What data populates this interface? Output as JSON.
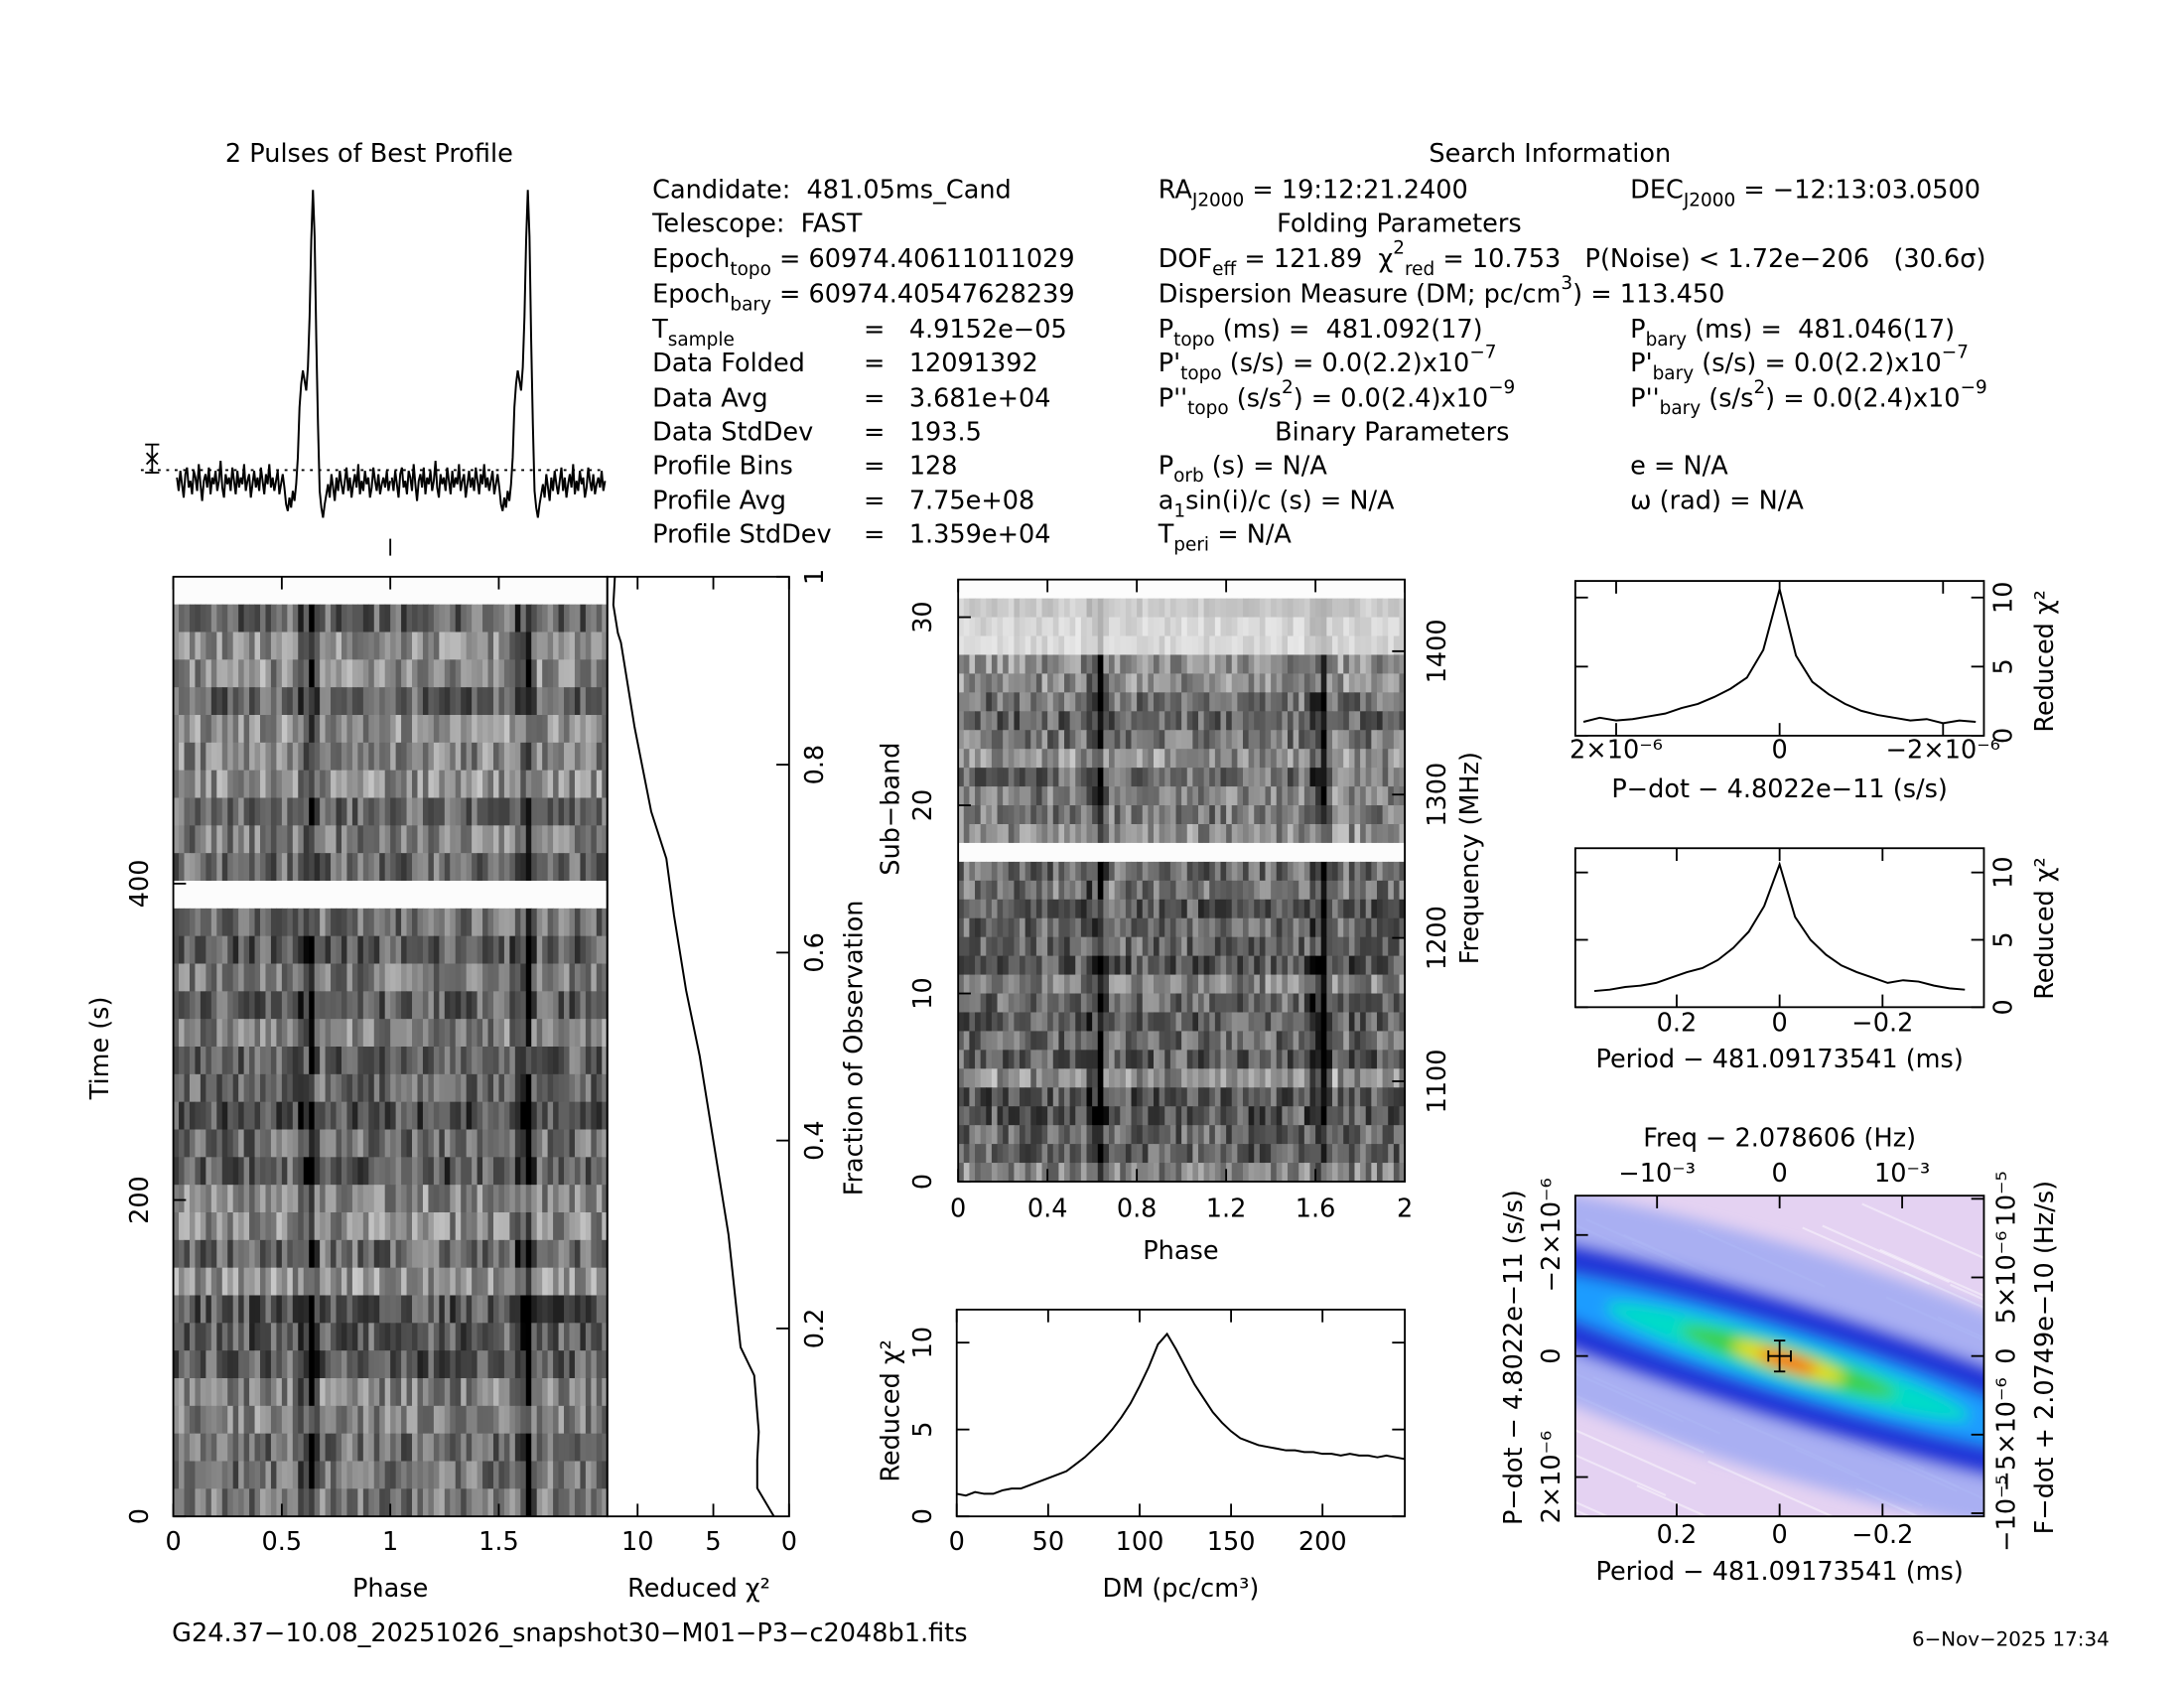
{
  "info": {
    "title": "Search Information",
    "items": [
      [
        {
          "t": "Candidate:  481.05ms_Cand"
        }
      ],
      [
        {
          "t": "Telescope:  FAST"
        }
      ],
      [
        {
          "t": "Epoch"
        },
        {
          "sub": "topo"
        },
        {
          "t": " = 60974.40611011029"
        }
      ],
      [
        {
          "t": "Epoch"
        },
        {
          "sub": "bary"
        },
        {
          "t": " = 60974.40547628239"
        }
      ],
      [
        {
          "t": "T"
        },
        {
          "sub": "sample"
        }
      ],
      [
        {
          "t": "=   4.9152e−05"
        }
      ],
      [
        {
          "t": "Data Folded"
        }
      ],
      [
        {
          "t": "=   12091392"
        }
      ],
      [
        {
          "t": "Data Avg"
        }
      ],
      [
        {
          "t": "=   3.681e+04"
        }
      ],
      [
        {
          "t": "Data StdDev"
        }
      ],
      [
        {
          "t": "=   193.5"
        }
      ],
      [
        {
          "t": "Profile Bins"
        }
      ],
      [
        {
          "t": "=   128"
        }
      ],
      [
        {
          "t": "Profile Avg"
        }
      ],
      [
        {
          "t": "=   7.75e+08"
        }
      ],
      [
        {
          "t": "Profile StdDev"
        }
      ],
      [
        {
          "t": "=   1.359e+04"
        }
      ],
      [
        {
          "t": "RA"
        },
        {
          "sub": "J2000"
        },
        {
          "t": " = 19:12:21.2400"
        }
      ],
      [
        {
          "t": "Folding Parameters"
        }
      ],
      [
        {
          "t": "DOF"
        },
        {
          "sub": "eff"
        },
        {
          "t": " = 121.89  χ"
        },
        {
          "sup": "2"
        },
        {
          "sub": "red"
        },
        {
          "t": " = 10.753   P(Noise) < 1.72e−206   (30.6σ)"
        }
      ],
      [
        {
          "t": "Dispersion Measure (DM; pc/cm"
        },
        {
          "sup": "3"
        },
        {
          "t": ") = 113.450"
        }
      ],
      [
        {
          "t": "P"
        },
        {
          "sub": "topo"
        },
        {
          "t": " (ms) =  481.092(17)"
        }
      ],
      [
        {
          "t": "P'"
        },
        {
          "sub": "topo"
        },
        {
          "t": " (s/s) = 0.0(2.2)x10"
        },
        {
          "sup": "−7"
        }
      ],
      [
        {
          "t": "P''"
        },
        {
          "sub": "topo"
        },
        {
          "t": " (s/s"
        },
        {
          "sup": "2"
        },
        {
          "t": ") = 0.0(2.4)x10"
        },
        {
          "sup": "−9"
        }
      ],
      [
        {
          "t": "Binary Parameters"
        }
      ],
      [
        {
          "t": "P"
        },
        {
          "sub": "orb"
        },
        {
          "t": " (s) = N/A"
        }
      ],
      [
        {
          "t": "a"
        },
        {
          "sub": "1"
        },
        {
          "t": "sin(i)/c (s) = N/A"
        }
      ],
      [
        {
          "t": "T"
        },
        {
          "sub": "peri"
        },
        {
          "t": " = N/A"
        }
      ],
      [
        {
          "t": "DEC"
        },
        {
          "sub": "J2000"
        },
        {
          "t": " = −12:13:03.0500"
        }
      ],
      [
        {
          "t": "P"
        },
        {
          "sub": "bary"
        },
        {
          "t": " (ms) =  481.046(17)"
        }
      ],
      [
        {
          "t": "P'"
        },
        {
          "sub": "bary"
        },
        {
          "t": " (s/s) = 0.0(2.2)x10"
        },
        {
          "sup": "−7"
        }
      ],
      [
        {
          "t": "P''"
        },
        {
          "sub": "bary"
        },
        {
          "t": " (s/s"
        },
        {
          "sup": "2"
        },
        {
          "t": ") = 0.0(2.4)x10"
        },
        {
          "sup": "−9"
        }
      ],
      [
        {
          "t": "e = N/A"
        }
      ],
      [
        {
          "t": "ω (rad) = N/A"
        }
      ]
    ]
  },
  "footer": {
    "file": "G24.37−10.08_20251026_snapshot30−M01−P3−c2048b1.fits",
    "date": "6−Nov−2025 17:34"
  },
  "chart_data": [
    {
      "type": "profile",
      "title": "2 Pulses of Best Profile",
      "color": "#000000",
      "values": [
        0.14,
        0.1,
        0.16,
        0.12,
        0.08,
        0.15,
        0.17,
        0.11,
        0.13,
        0.09,
        0.16,
        0.14,
        0.1,
        0.18,
        0.12,
        0.07,
        0.13,
        0.15,
        0.11,
        0.17,
        0.09,
        0.14,
        0.12,
        0.16,
        0.1,
        0.13,
        0.19,
        0.11,
        0.08,
        0.15,
        0.12,
        0.14,
        0.1,
        0.17,
        0.13,
        0.09,
        0.16,
        0.11,
        0.14,
        0.12,
        0.18,
        0.1,
        0.13,
        0.15,
        0.08,
        0.12,
        0.16,
        0.11,
        0.14,
        0.1,
        0.17,
        0.13,
        0.09,
        0.15,
        0.12,
        0.18,
        0.11,
        0.14,
        0.1,
        0.13,
        0.16,
        0.09,
        0.12,
        0.15,
        0.11,
        0.06,
        0.04,
        0.08,
        0.05,
        0.1,
        0.07,
        0.12,
        0.2,
        0.35,
        0.42,
        0.46,
        0.43,
        0.4,
        0.47,
        0.62,
        0.85,
        1.0,
        0.86,
        0.55,
        0.3,
        0.1,
        0.05,
        0.02,
        0.06,
        0.09,
        0.12,
        0.08,
        0.15,
        0.11,
        0.07,
        0.14,
        0.1,
        0.16,
        0.12,
        0.09,
        0.13,
        0.17,
        0.1,
        0.14,
        0.08,
        0.12,
        0.15,
        0.11,
        0.18,
        0.09,
        0.13,
        0.1,
        0.16,
        0.12,
        0.14,
        0.08,
        0.11,
        0.17,
        0.13,
        0.1,
        0.15,
        0.09,
        0.12,
        0.14,
        0.11,
        0.16,
        0.1,
        0.13
      ]
    },
    {
      "type": "greyscale",
      "xlabel": "Phase",
      "ylabel": "Time (s)",
      "xlim": [
        0,
        2
      ],
      "xticks": [
        0,
        0.5,
        1,
        1.5
      ],
      "ylim": [
        0,
        594
      ],
      "yticks": [
        0,
        200,
        400
      ]
    },
    {
      "type": "line",
      "xlabel": "Reduced χ²",
      "ylabel": "Fraction of Observation",
      "color": "#000000",
      "x": [
        1.0,
        2.1,
        2.1,
        2.0,
        2.3,
        3.2,
        4.0,
        4.3,
        5.2,
        5.9,
        6.8,
        7.6,
        8.1,
        9.1,
        10.2,
        11.1,
        11.3,
        11.6,
        11.5
      ],
      "values": [
        0,
        0.03,
        0.06,
        0.09,
        0.15,
        0.18,
        0.3,
        0.33,
        0.42,
        0.49,
        0.56,
        0.64,
        0.7,
        0.75,
        0.84,
        0.93,
        0.94,
        0.97,
        1.0
      ],
      "xlim": [
        12,
        0
      ],
      "xticks": [
        10,
        5,
        0
      ],
      "ylim": [
        0,
        1
      ],
      "yticks": [
        0.2,
        0.4,
        0.6,
        0.8,
        1
      ]
    },
    {
      "type": "greyscale",
      "xlabel": "Phase",
      "ylabel": "Sub−band",
      "y2label": "Frequency (MHz)",
      "xlim": [
        0,
        2
      ],
      "xticks": [
        0,
        0.4,
        0.8,
        1.2,
        1.6,
        2
      ],
      "ylim": [
        0,
        32
      ],
      "yticks": [
        0,
        10,
        20,
        30
      ],
      "y2lim": [
        1030,
        1450
      ],
      "y2ticks": [
        1100,
        1200,
        1300,
        1400
      ]
    },
    {
      "type": "line",
      "xlabel": "DM (pc/cm³)",
      "ylabel": "Reduced χ²",
      "color": "#000000",
      "x": [
        0,
        5,
        10,
        15,
        20,
        25,
        30,
        35,
        40,
        45,
        50,
        55,
        60,
        65,
        70,
        75,
        80,
        85,
        90,
        95,
        100,
        105,
        110,
        115,
        120,
        125,
        130,
        135,
        140,
        145,
        150,
        155,
        160,
        165,
        170,
        175,
        180,
        185,
        190,
        195,
        200,
        205,
        210,
        215,
        220,
        225,
        230,
        235,
        240,
        245
      ],
      "values": [
        1.3,
        1.2,
        1.4,
        1.3,
        1.3,
        1.5,
        1.6,
        1.6,
        1.8,
        2.0,
        2.2,
        2.4,
        2.6,
        3.0,
        3.4,
        3.9,
        4.4,
        5.0,
        5.7,
        6.5,
        7.5,
        8.6,
        9.9,
        10.5,
        9.6,
        8.6,
        7.6,
        6.8,
        6.0,
        5.4,
        4.9,
        4.5,
        4.3,
        4.1,
        4.0,
        3.9,
        3.8,
        3.8,
        3.7,
        3.7,
        3.6,
        3.6,
        3.5,
        3.6,
        3.5,
        3.5,
        3.4,
        3.5,
        3.4,
        3.3
      ],
      "xlim": [
        0,
        245
      ],
      "xticks": [
        0,
        50,
        100,
        150,
        200
      ],
      "ylim": [
        0,
        11.9
      ],
      "yticks": [
        0,
        5,
        10
      ]
    },
    {
      "type": "line",
      "xlabel": "P−dot − 4.8022e−11 (s/s)",
      "ylabel": "Reduced χ²",
      "color": "#000000",
      "x": [
        -2.4e-06,
        -2.2e-06,
        -2e-06,
        -1.8e-06,
        -1.6e-06,
        -1.4e-06,
        -1.2e-06,
        -1e-06,
        -8e-07,
        -6e-07,
        -4e-07,
        -2e-07,
        0,
        2e-07,
        4e-07,
        6e-07,
        8e-07,
        1e-06,
        1.2e-06,
        1.4e-06,
        1.6e-06,
        1.8e-06,
        2e-06,
        2.2e-06,
        2.4e-06
      ],
      "values": [
        1.0,
        1.1,
        0.9,
        1.2,
        1.1,
        1.3,
        1.5,
        1.8,
        2.3,
        3.0,
        3.9,
        5.8,
        10.6,
        6.2,
        4.2,
        3.4,
        2.8,
        2.3,
        2.0,
        1.6,
        1.4,
        1.2,
        1.1,
        1.3,
        1.0
      ],
      "xlim": [
        2.5e-06,
        -2.5e-06
      ],
      "xticks": [
        {
          "value": 2e-06,
          "label": "2×10⁻⁶"
        },
        0,
        {
          "value": -2e-06,
          "label": "−2×10⁻⁶"
        }
      ],
      "ylim": [
        0,
        11.2
      ],
      "yticks": [
        0,
        5,
        10
      ]
    },
    {
      "type": "line",
      "xlabel": "Period − 481.09173541 (ms)",
      "ylabel": "Reduced χ²",
      "color": "#000000",
      "x": [
        -0.36,
        -0.33,
        -0.3,
        -0.27,
        -0.24,
        -0.21,
        -0.18,
        -0.15,
        -0.12,
        -0.09,
        -0.06,
        -0.03,
        0,
        0.03,
        0.06,
        0.09,
        0.12,
        0.15,
        0.18,
        0.21,
        0.24,
        0.27,
        0.3,
        0.33,
        0.36
      ],
      "values": [
        1.3,
        1.4,
        1.6,
        1.9,
        2.0,
        1.8,
        2.2,
        2.6,
        3.1,
        3.9,
        5.0,
        6.7,
        10.6,
        7.5,
        5.6,
        4.4,
        3.5,
        2.9,
        2.6,
        2.2,
        1.8,
        1.6,
        1.5,
        1.3,
        1.2
      ],
      "xlim": [
        0.397,
        -0.397
      ],
      "xticks": [
        0.2,
        0,
        {
          "value": -0.2,
          "label": "−0.2"
        }
      ],
      "ylim": [
        0,
        11.8
      ],
      "yticks": [
        0,
        5,
        10
      ]
    },
    {
      "type": "contour",
      "xlabel": "Period − 481.09173541 (ms)",
      "x2label": "Freq − 2.078606 (Hz)",
      "ylabel": "P−dot − 4.8022e−11 (s/s)",
      "y2label": "F−dot + 2.0749e−10 (Hz/s)",
      "xlim": [
        0.397,
        -0.397
      ],
      "xticks": [
        0.2,
        0,
        {
          "value": -0.2,
          "label": "−0.2"
        }
      ],
      "x2lim": [
        -0.001667,
        0.001667
      ],
      "x2ticks": [
        {
          "value": -0.001,
          "label": "−10⁻³"
        },
        0,
        {
          "value": 0.001,
          "label": "10⁻³"
        }
      ],
      "ylim": [
        2.65e-06,
        -2.65e-06
      ],
      "yticks": [
        {
          "value": -2e-06,
          "label": "−2×10⁻⁶"
        },
        0,
        {
          "value": 2e-06,
          "label": "2×10⁻⁶"
        }
      ],
      "y2lim": [
        -1.02e-05,
        1.02e-05
      ],
      "y2ticks": [
        {
          "value": 1e-05,
          "label": "10⁻⁵"
        },
        {
          "value": 5e-06,
          "label": "5×10⁻⁶"
        },
        0,
        {
          "value": -5e-06,
          "label": "−5×10⁻⁶"
        },
        {
          "value": -1e-05,
          "label": "−10⁻⁵"
        }
      ]
    }
  ]
}
